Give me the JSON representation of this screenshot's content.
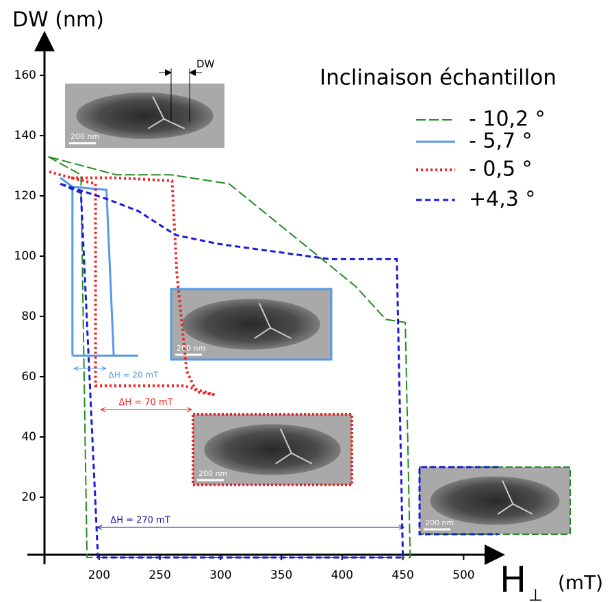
{
  "chart_data": {
    "type": "line",
    "y_label": "DW (nm)",
    "x_label": "H",
    "x_label_sub": "⊥",
    "x_unit": "(mT)",
    "legend_title": "Inclinaison échantillon",
    "legend": "upper right",
    "xlim": [
      155,
      530
    ],
    "ylim": [
      0,
      175
    ],
    "xticks": [
      200,
      250,
      300,
      350,
      400,
      450,
      500
    ],
    "yticks": [
      20,
      40,
      60,
      80,
      100,
      120,
      140,
      160
    ],
    "series": [
      {
        "name": "- 10,2 °",
        "color": "#228b22",
        "dash": "14 5",
        "width": 2,
        "x": [
          158,
          185,
          190,
          456,
          452,
          436,
          411,
          307,
          259,
          214,
          158
        ],
        "values": [
          133,
          127,
          0,
          0,
          78,
          79,
          90,
          124,
          127,
          127,
          133
        ]
      },
      {
        "name": "- 5,7 °",
        "color": "#5599e6",
        "dash": "none",
        "width": 3,
        "x": [
          168,
          178,
          178,
          null,
          178,
          206,
          212,
          null,
          178,
          232
        ],
        "values": [
          126,
          123,
          67,
          null,
          123,
          122,
          67,
          null,
          67,
          67
        ]
      },
      {
        "name": "- 0,5 °",
        "color": "#ee2222",
        "dash": "3 4",
        "width": 4,
        "x": [
          159,
          177,
          197,
          197,
          270,
          295,
          null,
          177,
          213,
          260,
          264,
          272,
          280,
          295
        ],
        "values": [
          128,
          126,
          124,
          57,
          57,
          54,
          null,
          126,
          126,
          125,
          94,
          62,
          55,
          54
        ]
      },
      {
        "name": "+4,3 °",
        "color": "#1a1adb",
        "dash": "8 5",
        "width": 3,
        "x": [
          168,
          185,
          199,
          450,
          445,
          390,
          299,
          263,
          232,
          206,
          168
        ],
        "values": [
          124,
          121,
          0,
          0,
          99,
          99,
          104,
          107,
          115,
          119,
          124
        ]
      }
    ],
    "annotations": [
      {
        "text": "ΔH = 20 mT",
        "color": "#5599e6"
      },
      {
        "text": "ΔH = 70 mT",
        "color": "#ee2222"
      },
      {
        "text": "ΔH = 270 mT",
        "color": "#1a1a99"
      }
    ],
    "dw_label": "DW",
    "insets": [
      {
        "scale_label": "200 nm"
      },
      {
        "scale_label": "200 nm"
      },
      {
        "scale_label": "200 nm"
      },
      {
        "scale_label": "200 nm"
      }
    ]
  }
}
